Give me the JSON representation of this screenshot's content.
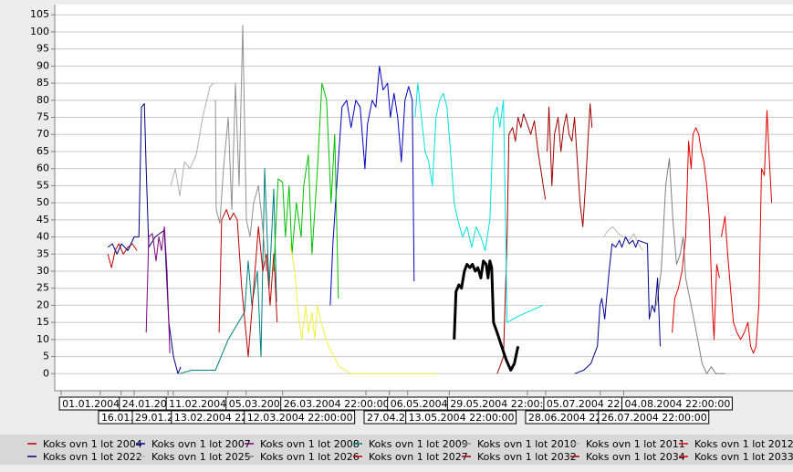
{
  "chart_data": {
    "type": "line",
    "grid": true,
    "legend": "bottom",
    "xlim": [
      -2.5,
      281
    ],
    "ylim": [
      -5,
      108
    ],
    "yticks": [
      0,
      5,
      10,
      15,
      20,
      25,
      30,
      35,
      40,
      45,
      50,
      55,
      60,
      65,
      70,
      75,
      80,
      85,
      90,
      95,
      100,
      105
    ],
    "xticks": [
      {
        "value": 0,
        "label": "01.01.2004 2"
      },
      {
        "value": 15,
        "label": "16.01.2"
      },
      {
        "value": 23,
        "label": "24.01.200"
      },
      {
        "value": 28,
        "label": "29.01.20"
      },
      {
        "value": 41,
        "label": "11.02.2004 2"
      },
      {
        "value": 43,
        "label": "13.02.2004 22:0"
      },
      {
        "value": 64,
        "label": "05.03.2004"
      },
      {
        "value": 71,
        "label": "12.03.2004 22:00:00"
      },
      {
        "value": 85,
        "label": "26.03.2004 22:00:00"
      },
      {
        "value": 117,
        "label": "27.04.20"
      },
      {
        "value": 126,
        "label": "06.05.2004 2"
      },
      {
        "value": 133,
        "label": "13.05.2004 22:00:00"
      },
      {
        "value": 149,
        "label": "29.05.2004 22:00:00"
      },
      {
        "value": 179,
        "label": "28.06.2004 22:0"
      },
      {
        "value": 186,
        "label": "05.07.2004 22:00"
      },
      {
        "value": 207,
        "label": "26.07.2004 22:00:00"
      },
      {
        "value": 216,
        "label": "04.08.2004 22:00:00"
      }
    ],
    "series": [
      {
        "name": "Koks ovn 1 lot 2004",
        "color": "#c00000",
        "x": [
          17.9,
          19.3,
          20.7,
          22.1,
          23.8,
          25.6,
          27.3,
          29.1
        ],
        "values": [
          35,
          31,
          36,
          38,
          35,
          37,
          38,
          36
        ]
      },
      {
        "name": "Koks ovn 1 lot 2022",
        "color": "#000080",
        "x": [
          17.9,
          19.6,
          21.4,
          23.1,
          25.6,
          28.0,
          29.8,
          30.8,
          31.9,
          32.6,
          33.6,
          36.1,
          39.6,
          41.3,
          43.1,
          44.8,
          45.9
        ],
        "values": [
          37,
          38,
          35,
          38,
          36,
          40,
          40,
          78,
          79,
          60,
          37,
          40,
          42,
          15,
          5,
          0,
          2
        ]
      },
      {
        "name": "Koks ovn 1 lot 2007",
        "color": "#0000c0",
        "x": [
          103.3,
          104.3,
          106.2,
          107.8,
          109.6,
          111.3,
          113.1,
          114.8,
          116.6,
          117.6,
          119.4,
          120.8,
          122.2,
          123.6,
          125.3,
          126.4,
          127.8,
          129.2,
          130.6,
          132.0,
          133.4,
          134.8,
          135.5
        ],
        "values": [
          20,
          38,
          60,
          78,
          80,
          72,
          80,
          78,
          60,
          73,
          80,
          78,
          90,
          83,
          85,
          75,
          82,
          75,
          62,
          80,
          84,
          80,
          27
        ]
      },
      {
        "name": "Koks ovn 1 lot 2025",
        "color": "#b8b8b8",
        "x": [
          208.3,
          210.1,
          211.8,
          213.9,
          216.0,
          218.1,
          219.9,
          221.6,
          223.4
        ],
        "values": [
          40,
          42,
          43,
          41,
          40,
          39,
          41,
          38,
          36
        ]
      },
      {
        "name": "Koks ovn 1 lot 2008",
        "color": "#800080",
        "x": [
          32.6,
          33.6,
          35.0,
          36.4,
          37.5,
          38.5,
          39.6,
          40.6,
          41.7
        ],
        "values": [
          12,
          40,
          41,
          33,
          40,
          36,
          43,
          30,
          6
        ]
      },
      {
        "name": "Koks ovn 1 lot 2026",
        "color": "#808080",
        "x": [
          228.6,
          230.4,
          232.1,
          233.5,
          234.9,
          236.3,
          237.7,
          238.8,
          239.8,
          241.9,
          244.4,
          246.1,
          247.9,
          249.6,
          251.4,
          254.9
        ],
        "values": [
          20,
          30,
          55,
          63,
          45,
          32,
          35,
          40,
          28,
          20,
          10,
          3,
          0,
          2,
          0,
          0
        ]
      },
      {
        "name": "Koks ovn 1 lot 2009",
        "color": "#008080",
        "x": [
          45.5,
          50.1,
          59.2,
          64.1,
          70.4,
          71.8,
          73.2,
          75.3,
          76.7,
          78.1,
          79.8,
          81.6,
          82.7
        ],
        "values": [
          0,
          1,
          1,
          10,
          18,
          33,
          20,
          30,
          5,
          60,
          25,
          54,
          21
        ]
      },
      {
        "name": "Koks ovn 1 lot 2027",
        "color": "#c00000",
        "x": [
          60.6,
          61.6,
          63.4,
          64.8,
          66.2,
          67.6,
          69.3,
          71.8,
          73.9,
          75.7,
          77.4,
          78.8,
          80.2,
          81.6,
          82.9
        ],
        "values": [
          12,
          45,
          48,
          45,
          47,
          45,
          25,
          5,
          25,
          43,
          30,
          35,
          20,
          35,
          15
        ]
      },
      {
        "name": "Koks ovn 1 lot 2010",
        "color": "#909090",
        "x": [
          59.2,
          59.5,
          60.9,
          62.3,
          64.1,
          65.5,
          66.9,
          68.3,
          69.7,
          71.1,
          72.5,
          73.9,
          75.7,
          77.1,
          78.8
        ],
        "values": [
          80,
          48,
          44,
          60,
          75,
          48,
          85,
          55,
          102,
          45,
          40,
          50,
          55,
          45,
          30
        ]
      },
      {
        "name": "Koks ovn 1 lot 2032",
        "color": "#a00000",
        "x": [
          167.4,
          168.4,
          169.8,
          171.2,
          171.9,
          173.3,
          174.4,
          175.4,
          176.5,
          177.5,
          179.0,
          180.3,
          181.7,
          183.1,
          184.5,
          185.9
        ],
        "values": [
          0,
          2,
          5,
          40,
          70,
          72,
          68,
          75,
          72,
          76,
          73,
          70,
          74,
          65,
          58,
          51
        ]
      },
      {
        "name": "Koks ovn 1 lot 2011",
        "color": "#b0b0b0",
        "x": [
          42.0,
          43.8,
          45.5,
          47.3,
          49.4,
          51.8,
          54.3,
          57.1,
          58.5
        ],
        "values": [
          55,
          60,
          52,
          62,
          60,
          64,
          75,
          84,
          85
        ]
      },
      {
        "name": "Koks ovn 1 lot 2034",
        "color": "#a00000",
        "x": [
          186.6,
          187.3,
          188.4,
          189.4,
          190.8,
          191.9,
          192.9,
          194.0,
          195.0,
          196.1,
          197.1,
          198.2,
          199.2,
          200.3,
          201.3,
          202.4,
          203.1,
          203.8
        ],
        "values": [
          65,
          78,
          55,
          70,
          75,
          65,
          72,
          76,
          70,
          68,
          75,
          62,
          50,
          43,
          55,
          70,
          79,
          72
        ]
      },
      {
        "name": "Koks ovn 1 lot 2012",
        "color": "#e00000",
        "x": [
          234.6,
          235.6,
          237.0,
          238.4,
          239.8,
          240.9,
          241.9,
          242.6,
          243.7,
          244.8,
          245.8,
          246.8,
          247.9,
          248.9,
          250.0,
          250.7,
          251.7,
          252.8
        ],
        "values": [
          12,
          22,
          25,
          30,
          40,
          68,
          60,
          70,
          72,
          70,
          65,
          62,
          55,
          45,
          20,
          10,
          32,
          28
        ]
      },
      {
        "name": "Koks ovn 1 lot 2033",
        "color": "#e00000",
        "x": [
          253.5,
          254.9,
          255.9,
          257.0,
          258.1,
          259.5,
          260.9,
          262.3,
          263.7,
          264.7,
          265.8,
          266.8,
          267.9,
          268.9,
          270.0,
          271.0,
          272.1,
          272.8
        ],
        "values": [
          40,
          46,
          35,
          25,
          15,
          12,
          10,
          12,
          15,
          8,
          6,
          8,
          20,
          60,
          58,
          77,
          60,
          50
        ]
      },
      {
        "color": "#00c000",
        "x": [
          81.6,
          83.3,
          85.0,
          86.1,
          87.5,
          88.6,
          90.3,
          92.1,
          93.1,
          94.9,
          96.3,
          98.4,
          100.1,
          101.9,
          103.6,
          105.0,
          106.4
        ],
        "values": [
          30,
          57,
          56,
          40,
          55,
          35,
          50,
          40,
          55,
          64,
          35,
          60,
          85,
          80,
          50,
          70,
          22
        ]
      },
      {
        "color": "#f0f040",
        "x": [
          87.9,
          89.6,
          91.4,
          92.4,
          93.8,
          94.9,
          96.3,
          97.3,
          98.4,
          99.8,
          102.6,
          106.8,
          111.3,
          123.6,
          143.9
        ],
        "values": [
          38,
          30,
          15,
          10,
          20,
          12,
          18,
          10,
          20,
          15,
          8,
          2,
          0,
          0,
          0
        ]
      },
      {
        "color": "#00e0e0",
        "x": [
          135.9,
          136.9,
          138.3,
          139.7,
          141.1,
          142.5,
          143.9,
          145.3,
          146.7,
          148.1,
          149.5,
          150.9,
          152.3,
          154.1,
          155.8,
          157.6,
          159.3,
          161.1,
          162.8,
          164.6,
          166.0,
          167.4,
          168.4,
          169.8,
          171.2,
          176.1,
          184.9
        ],
        "values": [
          75,
          85,
          75,
          65,
          62,
          55,
          75,
          80,
          82,
          78,
          65,
          50,
          45,
          40,
          43,
          37,
          43,
          40,
          36,
          45,
          75,
          78,
          72,
          80,
          15,
          17,
          20
        ]
      },
      {
        "color": "#000000",
        "line_width": 3,
        "x": [
          150.9,
          151.6,
          152.7,
          153.7,
          154.8,
          155.8,
          156.9,
          157.9,
          159.0,
          160.0,
          161.1,
          162.1,
          163.2,
          163.9,
          164.6,
          165.3,
          166.0,
          167.4,
          169.1,
          170.9,
          172.6,
          174.0,
          175.4
        ],
        "values": [
          10,
          24,
          26,
          25,
          30,
          32,
          31,
          32,
          30,
          31,
          28,
          33,
          32,
          28,
          33,
          31,
          15,
          12,
          8,
          4,
          1,
          3,
          8
        ]
      },
      {
        "color": "#000090",
        "x": [
          197.1,
          200.6,
          203.4,
          205.9,
          206.9,
          207.6,
          208.7,
          209.4,
          210.4,
          211.5,
          212.9,
          214.3,
          215.3,
          216.7,
          218.1,
          219.5,
          220.6,
          221.6,
          225.1,
          225.8,
          226.9,
          227.9,
          229.0,
          230.0
        ],
        "values": [
          0,
          1,
          3,
          8,
          20,
          22,
          16,
          22,
          30,
          38,
          37,
          39,
          37,
          40,
          38,
          39,
          37,
          39,
          38,
          16,
          20,
          18,
          28,
          8
        ]
      }
    ]
  }
}
